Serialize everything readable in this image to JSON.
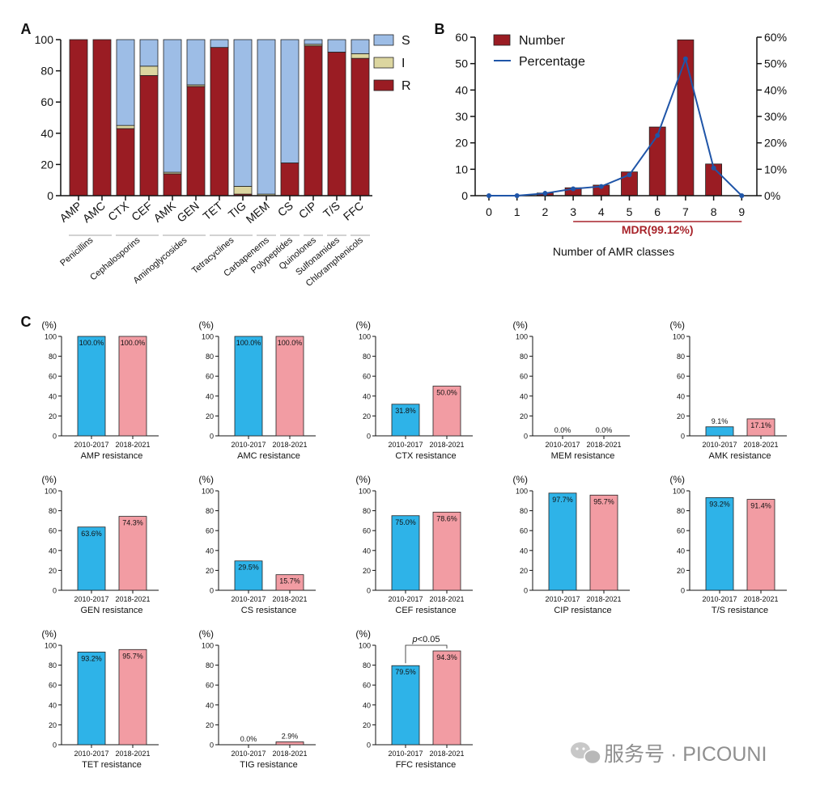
{
  "colors": {
    "S": "#9dbde6",
    "I": "#dcd6a0",
    "R": "#9a1c23",
    "early": "#2eb3e8",
    "late": "#f29ca3",
    "line": "#1f55a8",
    "mdr": "#a8242b",
    "axis": "#111111"
  },
  "panel_labels": {
    "a": "A",
    "b": "B",
    "c": "C"
  },
  "watermark": {
    "text": "服务号 · PICOUNI",
    "icon": "wechat-icon"
  },
  "chart_data": [
    {
      "id": "A",
      "type": "bar",
      "stacked": true,
      "categories": [
        "AMP",
        "AMC",
        "CTX",
        "CEF",
        "AMK",
        "GEN",
        "TET",
        "TIG",
        "MEM",
        "CS",
        "CIP",
        "T/S",
        "FFC"
      ],
      "series": [
        {
          "name": "R",
          "values": [
            100,
            100,
            43,
            77,
            14,
            70,
            95,
            1,
            0,
            21,
            96,
            92,
            88
          ]
        },
        {
          "name": "I",
          "values": [
            0,
            0,
            2,
            6,
            1,
            1,
            0,
            5,
            1,
            0,
            1,
            0,
            3
          ]
        },
        {
          "name": "S",
          "values": [
            0,
            0,
            55,
            17,
            85,
            29,
            5,
            94,
            99,
            79,
            3,
            8,
            9
          ]
        }
      ],
      "legend": [
        "S",
        "I",
        "R"
      ],
      "legend_position": "right",
      "ylim": [
        0,
        100
      ],
      "yticks": [
        "0",
        "20",
        "40",
        "60",
        "80",
        "100"
      ],
      "groups": [
        {
          "label": "Penicillins",
          "from": 0,
          "to": 1
        },
        {
          "label": "Cephalosporins",
          "from": 2,
          "to": 3
        },
        {
          "label": "Aminoglycosides",
          "from": 4,
          "to": 5
        },
        {
          "label": "Tetracyclines",
          "from": 6,
          "to": 7
        },
        {
          "label": "Carbapenems",
          "from": 8,
          "to": 8
        },
        {
          "label": "Polypeptides",
          "from": 9,
          "to": 9
        },
        {
          "label": "Quinolones",
          "from": 10,
          "to": 10
        },
        {
          "label": "Sulfonamides",
          "from": 11,
          "to": 11
        },
        {
          "label": "Chloramphenicols",
          "from": 12,
          "to": 12
        }
      ]
    },
    {
      "id": "B",
      "type": "bar+line",
      "x": [
        0,
        1,
        2,
        3,
        4,
        5,
        6,
        7,
        8,
        9
      ],
      "xticks": [
        "0",
        "1",
        "2",
        "3",
        "4",
        "5",
        "6",
        "7",
        "8",
        "9"
      ],
      "series": [
        {
          "name": "Number",
          "type": "bar",
          "values": [
            0,
            0,
            1,
            3,
            4,
            9,
            26,
            59,
            12,
            0
          ]
        },
        {
          "name": "Percentage",
          "type": "line",
          "values": [
            0,
            0,
            0.9,
            2.6,
            3.5,
            7.9,
            22.8,
            51.8,
            10.5,
            0
          ]
        }
      ],
      "ylim_left": [
        0,
        60
      ],
      "yticks_left": [
        "0",
        "10",
        "20",
        "30",
        "40",
        "50",
        "60"
      ],
      "ylim_right": [
        0,
        60
      ],
      "yticks_right": [
        "0%",
        "10%",
        "20%",
        "30%",
        "40%",
        "50%",
        "60%"
      ],
      "xlabel": "Number of AMR classes",
      "annotation": "MDR(99.12%)",
      "annotation_range": [
        3,
        9
      ],
      "legend_position": "top-left"
    },
    {
      "id": "C",
      "type": "bar",
      "ylabel": "(%)",
      "ylim": [
        0,
        100
      ],
      "yticks": [
        "0",
        "20",
        "40",
        "60",
        "80",
        "100"
      ],
      "categories": [
        "2010-2017",
        "2018-2021"
      ],
      "panels": [
        {
          "title": "AMP resistance",
          "values": [
            100,
            100
          ],
          "labels": [
            "100.0%",
            "100.0%"
          ]
        },
        {
          "title": "AMC resistance",
          "values": [
            100,
            100
          ],
          "labels": [
            "100.0%",
            "100.0%"
          ]
        },
        {
          "title": "CTX resistance",
          "values": [
            31.8,
            50.0
          ],
          "labels": [
            "31.8%",
            "50.0%"
          ]
        },
        {
          "title": "MEM resistance",
          "values": [
            0,
            0
          ],
          "labels": [
            "0.0%",
            "0.0%"
          ]
        },
        {
          "title": "AMK resistance",
          "values": [
            9.1,
            17.1
          ],
          "labels": [
            "9.1%",
            "17.1%"
          ]
        },
        {
          "title": "GEN resistance",
          "values": [
            63.6,
            74.3
          ],
          "labels": [
            "63.6%",
            "74.3%"
          ]
        },
        {
          "title": "CS resistance",
          "values": [
            29.5,
            15.7
          ],
          "labels": [
            "29.5%",
            "15.7%"
          ]
        },
        {
          "title": "CEF resistance",
          "values": [
            75.0,
            78.6
          ],
          "labels": [
            "75.0%",
            "78.6%"
          ]
        },
        {
          "title": "CIP resistance",
          "values": [
            97.7,
            95.7
          ],
          "labels": [
            "97.7%",
            "95.7%"
          ]
        },
        {
          "title": "T/S resistance",
          "values": [
            93.2,
            91.4
          ],
          "labels": [
            "93.2%",
            "91.4%"
          ]
        },
        {
          "title": "TET resistance",
          "values": [
            93.2,
            95.7
          ],
          "labels": [
            "93.2%",
            "95.7%"
          ]
        },
        {
          "title": "TIG resistance",
          "values": [
            0,
            2.9
          ],
          "labels": [
            "0.0%",
            "2.9%"
          ]
        },
        {
          "title": "FFC resistance",
          "values": [
            79.5,
            94.3
          ],
          "labels": [
            "79.5%",
            "94.3%"
          ],
          "significance": {
            "italic": "p",
            "rest": "<0.05"
          }
        }
      ]
    }
  ]
}
